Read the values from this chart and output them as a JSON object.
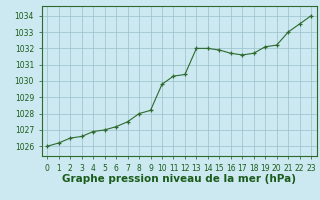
{
  "x": [
    0,
    1,
    2,
    3,
    4,
    5,
    6,
    7,
    8,
    9,
    10,
    11,
    12,
    13,
    14,
    15,
    16,
    17,
    18,
    19,
    20,
    21,
    22,
    23
  ],
  "y": [
    1026.0,
    1026.2,
    1026.5,
    1026.6,
    1026.9,
    1027.0,
    1027.2,
    1027.5,
    1028.0,
    1028.2,
    1029.8,
    1030.3,
    1030.4,
    1032.0,
    1032.0,
    1031.9,
    1031.7,
    1031.6,
    1031.7,
    1032.1,
    1032.2,
    1033.0,
    1033.5,
    1034.0
  ],
  "line_color": "#2d6a2d",
  "marker_color": "#2d6a2d",
  "bg_color": "#cce8f0",
  "grid_color": "#9bbfcc",
  "border_color": "#2d6a2d",
  "title": "Graphe pression niveau de la mer (hPa)",
  "title_color": "#1a5c1a",
  "title_fontsize": 7.5,
  "ylabel_ticks": [
    1026,
    1027,
    1028,
    1029,
    1030,
    1031,
    1032,
    1033,
    1034
  ],
  "ylim": [
    1025.4,
    1034.6
  ],
  "xlim": [
    -0.5,
    23.5
  ],
  "tick_fontsize": 5.5,
  "axis_label_color": "#1a5c1a"
}
